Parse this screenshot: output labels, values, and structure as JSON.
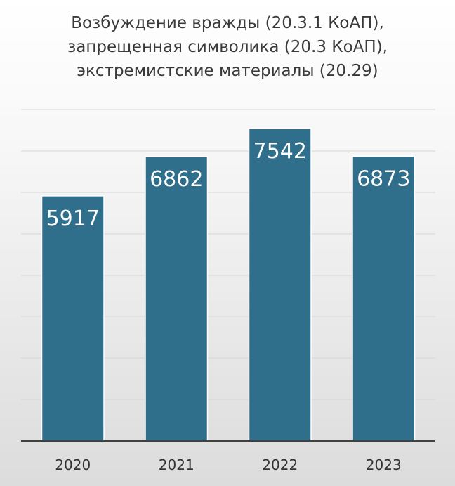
{
  "chart_data": {
    "type": "bar",
    "title_lines": [
      "Возбуждение вражды (20.3.1 КоАП),",
      "запрещенная символика (20.3 КоАП),",
      "экстремистские материалы (20.29)"
    ],
    "categories": [
      "2020",
      "2021",
      "2022",
      "2023"
    ],
    "values": [
      5917,
      6862,
      7542,
      6873
    ],
    "ylim": [
      0,
      8000
    ],
    "grid": true,
    "legend": "none",
    "colors": {
      "bar": "#2f6f8c"
    }
  }
}
